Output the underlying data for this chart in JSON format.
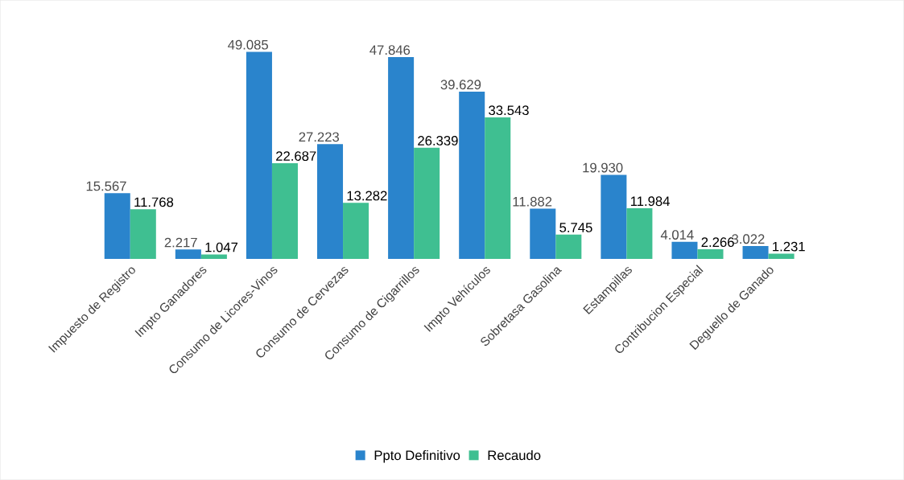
{
  "chart_data": {
    "type": "bar",
    "categories": [
      "Impuesto de Registro",
      "Impto Ganadores",
      "Consumo de Licores-Vinos",
      "Consumo de Cervezas",
      "Consumo de Cigarrillos",
      "Impto Vehículos",
      "Sobretasa Gasolina",
      "Estampillas",
      "Contribucion Especial",
      "Deguello de Ganado"
    ],
    "series": [
      {
        "name": "Ppto Definitivo",
        "color": "#2a84cc",
        "values": [
          15.567,
          2.217,
          49.085,
          27.223,
          47.846,
          39.629,
          11.882,
          19.93,
          4.014,
          3.022
        ],
        "value_labels": [
          "15.567",
          "2.217",
          "49.085",
          "27.223",
          "47.846",
          "39.629",
          "11.882",
          "19.930",
          "4.014",
          "3.022"
        ]
      },
      {
        "name": "Recaudo",
        "color": "#3fbf91",
        "values": [
          11.768,
          1.047,
          22.687,
          13.282,
          26.339,
          33.543,
          5.745,
          11.984,
          2.266,
          1.231
        ],
        "value_labels": [
          "11.768",
          "1.047",
          "22.687",
          "13.282",
          "26.339",
          "33.543",
          "5.745",
          "11.984",
          "2.266",
          "1.231"
        ]
      }
    ],
    "legend": "bottom"
  }
}
